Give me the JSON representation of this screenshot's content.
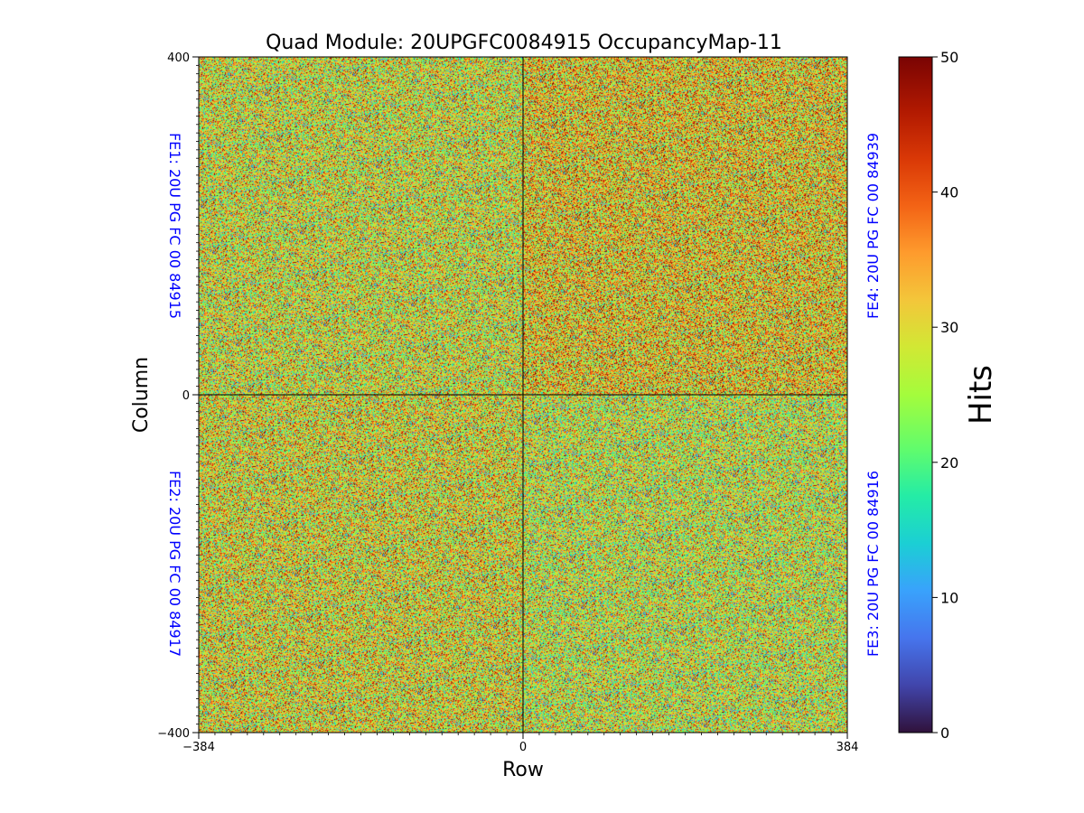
{
  "chart_data": {
    "type": "heatmap",
    "title": "Quad Module: 20UPGFC0084915 OccupancyMap-11",
    "xlabel": "Row",
    "ylabel": "Column",
    "xlim": [
      -384,
      384
    ],
    "ylim": [
      -400,
      400
    ],
    "x_ticks": [
      "−384",
      "0",
      "384"
    ],
    "y_ticks": [
      "400",
      "0",
      "−400"
    ],
    "colorbar": {
      "label": "Hits",
      "range": [
        0,
        50
      ],
      "ticks": [
        "0",
        "10",
        "20",
        "30",
        "40",
        "50"
      ],
      "colormap": "turbo"
    },
    "quadrants": [
      {
        "id": "FE1",
        "label": "FE1: 20U PG FC 00 84915",
        "position": "top-left",
        "mean_hits": 29
      },
      {
        "id": "FE2",
        "label": "FE2: 20U PG FC 00 84917",
        "position": "bottom-left",
        "mean_hits": 30
      },
      {
        "id": "FE3",
        "label": "FE3: 20U PG FC 00 84916",
        "position": "bottom-right",
        "mean_hits": 28
      },
      {
        "id": "FE4",
        "label": "FE4: 20U PG FC 00 84939",
        "position": "top-right",
        "mean_hits": 32
      }
    ],
    "grid": false
  }
}
